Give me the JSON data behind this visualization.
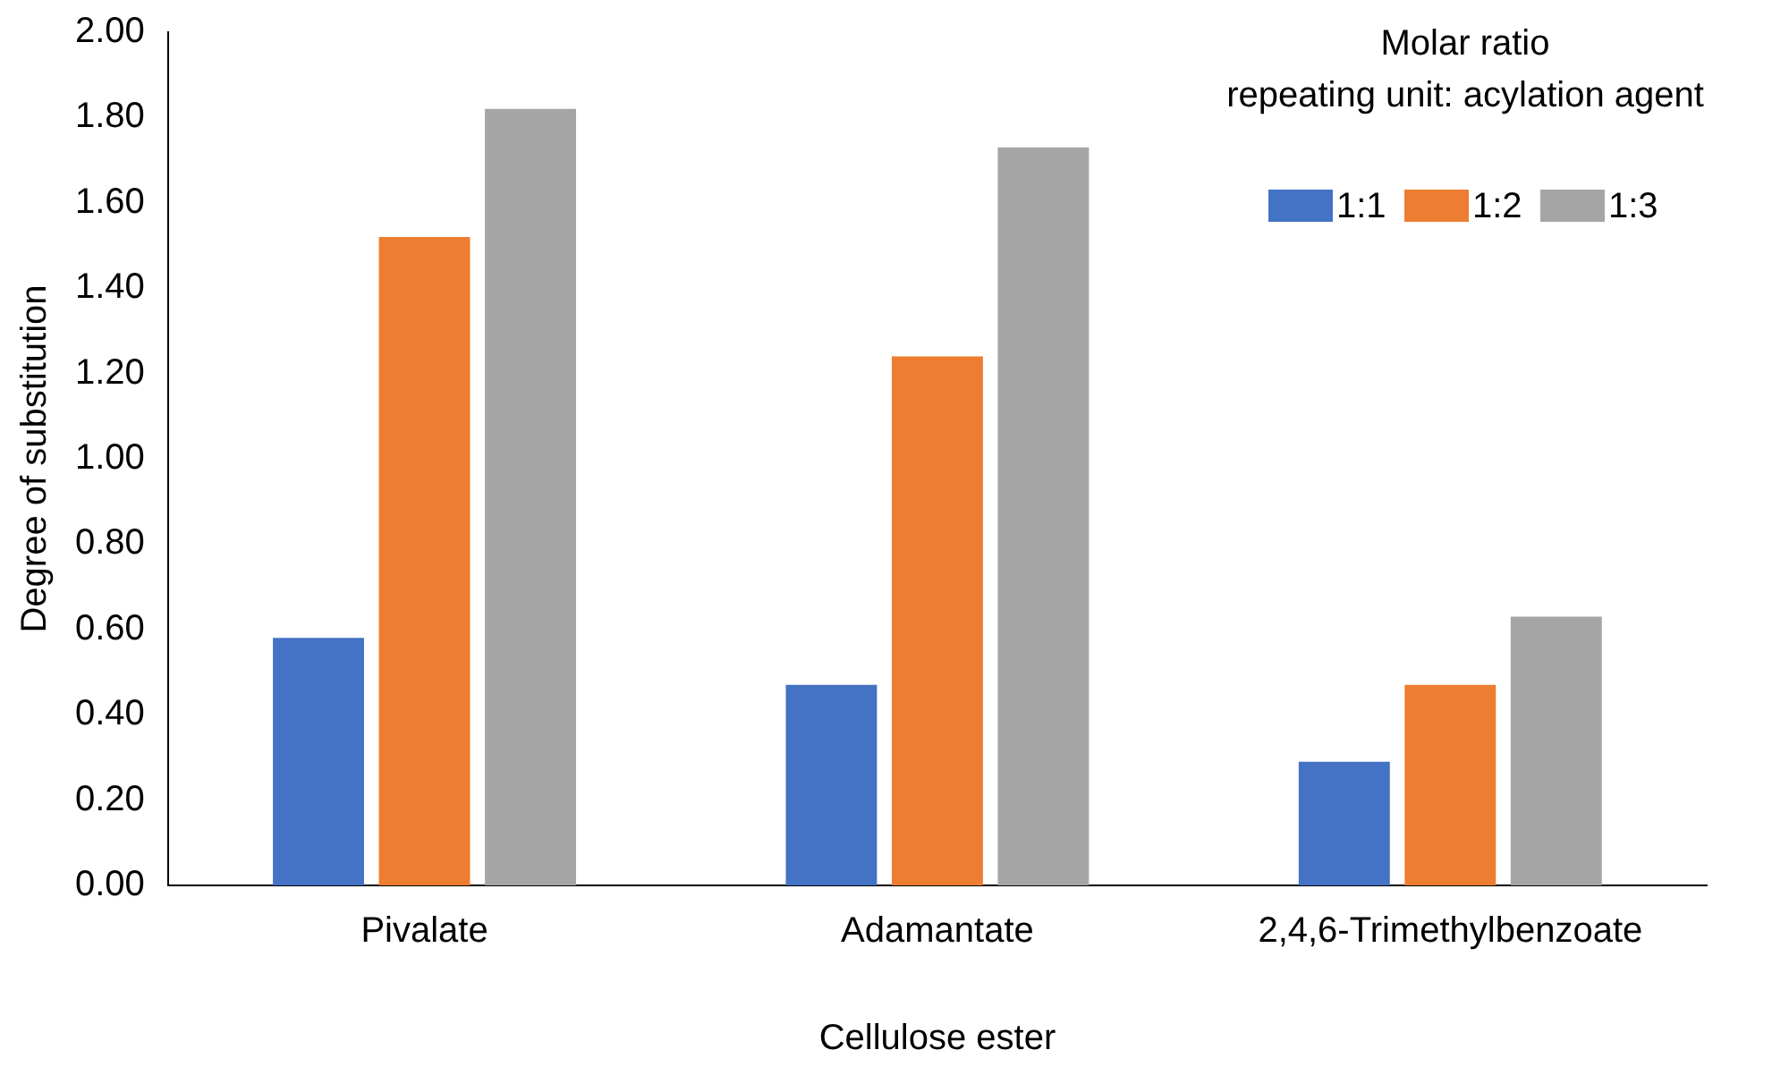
{
  "chart_data": {
    "type": "bar",
    "xlabel": "Cellulose ester",
    "ylabel": "Degree of substitution",
    "legend_title": "Molar ratio\nrepeating unit: acylation agent",
    "legend": "top right",
    "grid": false,
    "categories": [
      "Pivalate",
      "Adamantate",
      "2,4,6-Trimethylbenzoate"
    ],
    "series": [
      {
        "name": "1:1",
        "color": "#4472c4",
        "values": [
          0.58,
          0.47,
          0.29
        ]
      },
      {
        "name": "1:2",
        "color": "#ed7d31",
        "values": [
          1.52,
          1.24,
          0.47
        ]
      },
      {
        "name": "1:3",
        "color": "#a5a5a5",
        "values": [
          1.82,
          1.73,
          0.63
        ]
      }
    ],
    "ylim": [
      0,
      2
    ],
    "yticks": [
      {
        "value": 0,
        "label": "0.00"
      },
      {
        "value": 0.2,
        "label": "0.20"
      },
      {
        "value": 0.4,
        "label": "0.40"
      },
      {
        "value": 0.6,
        "label": "0.60"
      },
      {
        "value": 0.8,
        "label": "0.80"
      },
      {
        "value": 1,
        "label": "1.00"
      },
      {
        "value": 1.2,
        "label": "1.20"
      },
      {
        "value": 1.4,
        "label": "1.40"
      },
      {
        "value": 1.6,
        "label": "1.60"
      },
      {
        "value": 1.8,
        "label": "1.80"
      },
      {
        "value": 2,
        "label": "2.00"
      }
    ]
  }
}
